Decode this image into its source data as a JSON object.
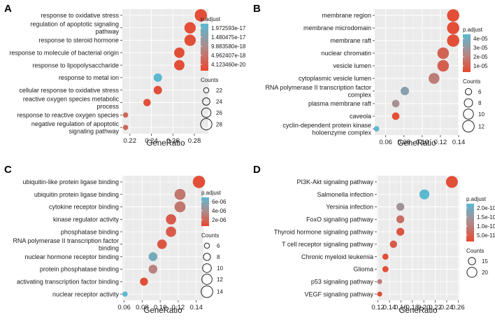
{
  "colors": {
    "low": "#5bb8d0",
    "high": "#e8472e"
  },
  "chart_data": [
    {
      "panel": "A",
      "type": "scatter",
      "xlabel": "GeneRatio",
      "xlim": [
        0.213,
        0.293
      ],
      "xticks": [
        "0.22",
        "0.24",
        "0.26",
        "0.28"
      ],
      "xtick_values": [
        0.22,
        0.24,
        0.26,
        0.28
      ],
      "color_legend_title": "p.adjust",
      "color_legend_labels": [
        "1.972593e-17",
        "1.480475e-17",
        "9.883580e-18",
        "4.962407e-18",
        "4.123460e-20"
      ],
      "size_legend_title": "Counts",
      "size_legend_labels": [
        "22",
        "24",
        "26",
        "28"
      ],
      "size_legend_values": [
        22,
        24,
        26,
        28
      ],
      "size_range": [
        21,
        29
      ],
      "categories": [
        [
          "response to oxidative stress"
        ],
        [
          "regulation of apoptotic signaling",
          "pathway"
        ],
        [
          "response to steroid hormone"
        ],
        [
          "response to molecule of bacterial origin"
        ],
        [
          "response to lipopolysaccharide"
        ],
        [
          "response to metal ion"
        ],
        [
          "cellular response to oxidative stress"
        ],
        [
          "reactive oxygen species metabolic",
          "process"
        ],
        [
          "response to reactive oxygen species"
        ],
        [
          "negative regulation of apoptotic",
          "signaling pathway"
        ]
      ],
      "x": [
        0.286,
        0.276,
        0.276,
        0.266,
        0.266,
        0.246,
        0.246,
        0.236,
        0.216,
        0.216
      ],
      "size": [
        29,
        28,
        28,
        27,
        27,
        25,
        25,
        24,
        22,
        22
      ],
      "color": [
        0.05,
        0.05,
        0.05,
        0.05,
        0.05,
        1.0,
        0.05,
        0.05,
        0.25,
        0.25
      ]
    },
    {
      "panel": "B",
      "type": "scatter",
      "xlabel": "GeneRatio",
      "xlim": [
        0.048,
        0.14
      ],
      "xticks": [
        "0.06",
        "0.08",
        "0.10",
        "0.12",
        "0.14"
      ],
      "xtick_values": [
        0.06,
        0.08,
        0.1,
        0.12,
        0.14
      ],
      "color_legend_title": "p.adjust",
      "color_legend_labels": [
        "4e-05",
        "3e-05",
        "2e-05",
        "1e-05"
      ],
      "size_legend_title": "Counts",
      "size_legend_labels": [
        "6",
        "8",
        "10",
        "12"
      ],
      "size_legend_values": [
        6,
        8,
        10,
        12
      ],
      "size_range": [
        4,
        13
      ],
      "categories": [
        [
          "membrane region"
        ],
        [
          "membrane microdomain"
        ],
        [
          "membrane raft"
        ],
        [
          "nuclear chromatin"
        ],
        [
          "vesicle lumen"
        ],
        [
          "cytoplasmic vesicle lumen"
        ],
        [
          "RNA polymerase II transcription factor",
          "complex"
        ],
        [
          "plasma membrane raft"
        ],
        [
          "caveola"
        ],
        [
          "cyclin-dependent protein kinase",
          "holoenzyme complex"
        ]
      ],
      "x": [
        0.134,
        0.134,
        0.134,
        0.123,
        0.123,
        0.113,
        0.081,
        0.071,
        0.071,
        0.05
      ],
      "size": [
        13,
        13,
        13,
        12,
        12,
        11,
        8,
        7,
        7,
        5
      ],
      "color": [
        0.05,
        0.05,
        0.05,
        0.2,
        0.18,
        0.4,
        0.75,
        0.55,
        0.05,
        1.0
      ]
    },
    {
      "panel": "C",
      "type": "scatter",
      "xlabel": "GeneRatio",
      "xlim": [
        0.058,
        0.148
      ],
      "xticks": [
        "0.06",
        "0.08",
        "0.10",
        "0.12",
        "0.14"
      ],
      "xtick_values": [
        0.06,
        0.08,
        0.1,
        0.12,
        0.14
      ],
      "color_legend_title": "p.adjust",
      "color_legend_labels": [
        "6e-06",
        "4e-06",
        "2e-06"
      ],
      "size_legend_title": "Counts",
      "size_legend_labels": [
        "6",
        "8",
        "10",
        "12",
        "14"
      ],
      "size_legend_values": [
        6,
        8,
        10,
        12,
        14
      ],
      "size_range": [
        5,
        15
      ],
      "categories": [
        [
          "ubiquitin-like protein ligase binding"
        ],
        [
          "ubiquitin protein ligase binding"
        ],
        [
          "cytokine receptor binding"
        ],
        [
          "kinase regulator activity"
        ],
        [
          "phosphatase binding"
        ],
        [
          "RNA polymerase II transcription factor",
          "binding"
        ],
        [
          "nuclear hormone receptor binding"
        ],
        [
          "protein phosphatase binding"
        ],
        [
          "activating transcription factor binding"
        ],
        [
          "nuclear receptor activity"
        ]
      ],
      "x": [
        0.143,
        0.122,
        0.122,
        0.112,
        0.112,
        0.102,
        0.092,
        0.092,
        0.082,
        0.061
      ],
      "size": [
        15,
        13,
        13,
        12,
        12,
        11,
        10,
        10,
        9,
        6
      ],
      "color": [
        0.05,
        0.35,
        0.35,
        0.15,
        0.15,
        0.12,
        0.85,
        0.45,
        0.05,
        1.0
      ]
    },
    {
      "panel": "D",
      "type": "scatter",
      "xlabel": "GeneRatio",
      "xlim": [
        0.118,
        0.262
      ],
      "xticks": [
        "0.12",
        "0.14",
        "0.16",
        "0.18",
        "0.20",
        "0.22",
        "0.24",
        "0.26"
      ],
      "xtick_values": [
        0.12,
        0.14,
        0.16,
        0.18,
        0.2,
        0.22,
        0.24,
        0.26
      ],
      "color_legend_title": "p.adjust",
      "color_legend_labels": [
        "2.0e-10",
        "1.5e-10",
        "1.0e-10",
        "5.0e-11"
      ],
      "size_legend_title": "Counts",
      "size_legend_labels": [
        "15",
        "20"
      ],
      "size_legend_values": [
        15,
        20
      ],
      "size_range": [
        10,
        25
      ],
      "categories": [
        [
          "PI3K-Akt signaling pathway"
        ],
        [
          "Salmonella infection"
        ],
        [
          "Yersinia infection"
        ],
        [
          "FoxO signaling pathway"
        ],
        [
          "Thyroid hormone signaling pathway"
        ],
        [
          "T cell receptor signaling pathway"
        ],
        [
          "Chronic myeloid leukemia"
        ],
        [
          "Glioma"
        ],
        [
          "p53 signaling pathway"
        ],
        [
          "VEGF signaling pathway"
        ]
      ],
      "x": [
        0.249,
        0.201,
        0.159,
        0.159,
        0.159,
        0.147,
        0.133,
        0.133,
        0.123,
        0.123
      ],
      "size": [
        24,
        20,
        16,
        16,
        16,
        15,
        13,
        13,
        11,
        11
      ],
      "color": [
        0.05,
        1.0,
        0.6,
        0.3,
        0.1,
        0.15,
        0.05,
        0.05,
        0.4,
        0.05
      ]
    }
  ]
}
